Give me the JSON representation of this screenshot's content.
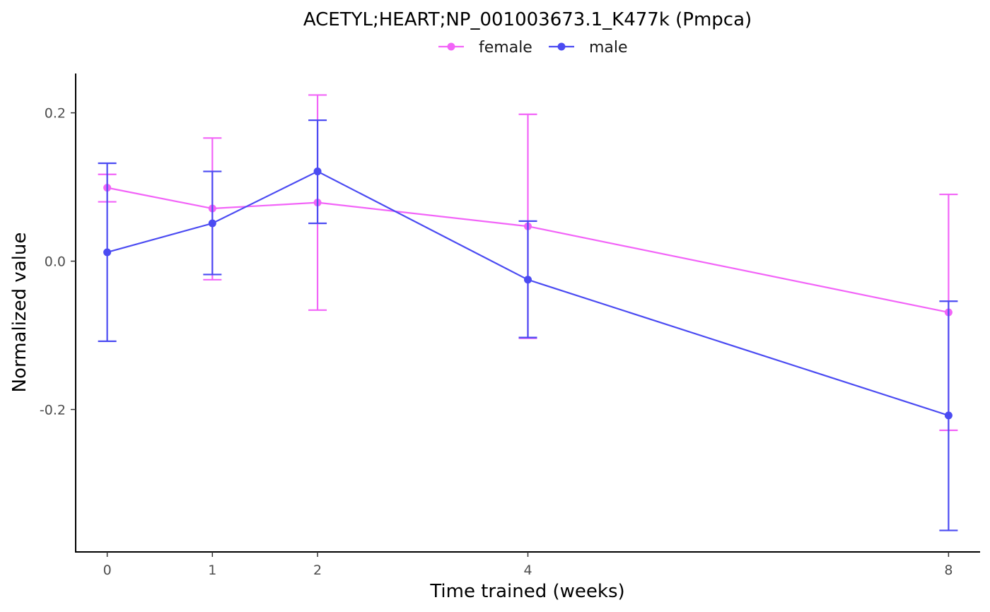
{
  "chart_data": {
    "type": "line",
    "title": "ACETYL;HEART;NP_001003673.1_K477k (Pmpca)",
    "xlabel": "Time trained (weeks)",
    "ylabel": "Normalized value",
    "x": [
      0,
      1,
      2,
      4,
      8
    ],
    "x_tick_labels": [
      "0",
      "1",
      "2",
      "4",
      "8"
    ],
    "y_ticks": [
      -0.2,
      0.0,
      0.2
    ],
    "y_tick_labels": [
      "-0.2",
      "0.0",
      "0.2"
    ],
    "xlim": [
      -0.3,
      8.3
    ],
    "ylim": [
      -0.392,
      0.253
    ],
    "grid": false,
    "legend_position": "top",
    "series": [
      {
        "name": "female",
        "color": "#F264F8",
        "values": [
          0.099,
          0.071,
          0.079,
          0.047,
          -0.069
        ],
        "error_low": [
          0.08,
          -0.025,
          -0.066,
          -0.104,
          -0.228
        ],
        "error_high": [
          0.117,
          0.166,
          0.224,
          0.198,
          0.09
        ]
      },
      {
        "name": "male",
        "color": "#4B4BF2",
        "values": [
          0.012,
          0.051,
          0.121,
          -0.025,
          -0.208
        ],
        "error_low": [
          -0.108,
          -0.018,
          0.051,
          -0.103,
          -0.363
        ],
        "error_high": [
          0.132,
          0.121,
          0.19,
          0.054,
          -0.054
        ]
      }
    ]
  }
}
